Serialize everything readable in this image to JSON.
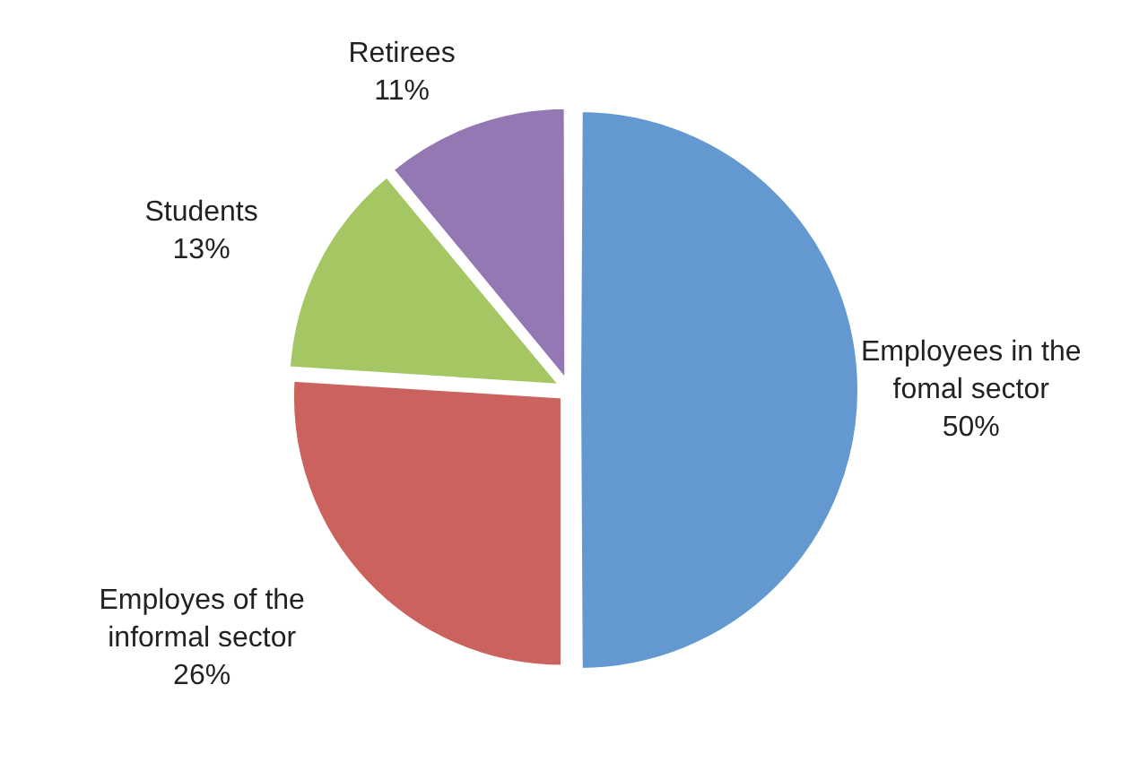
{
  "chart_data": {
    "type": "pie",
    "categories": [
      "Employees in the fomal sector",
      "Employes of the informal sector",
      "Students",
      "Retirees"
    ],
    "values": [
      50,
      26,
      13,
      11
    ],
    "value_labels": [
      "50%",
      "26%",
      "13%",
      "11%"
    ],
    "colors": [
      "#6398d0",
      "#cc625d",
      "#a4c663",
      "#9478b3"
    ]
  }
}
